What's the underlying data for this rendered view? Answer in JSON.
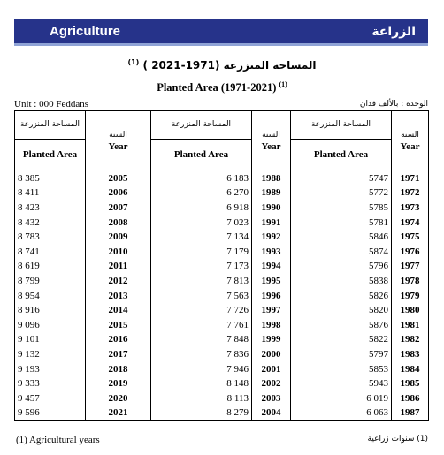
{
  "banner": {
    "title_en": "Agriculture",
    "title_ar": "الزراعة"
  },
  "titles": {
    "ar": "المساحة المنزرعة (1971-2021 )",
    "ar_note": "(1)",
    "en": "Planted Area (1971-2021)",
    "en_note": "(1)"
  },
  "unit": {
    "en": "Unit : 000 Feddans",
    "ar": "الوحدة : بالألف فدان"
  },
  "headers": {
    "area_ar": "المساحة المنزرعة",
    "area_en_block1": "Planted Area",
    "area_en": "Planted Area",
    "year_ar": "السنة",
    "year_en": "Year"
  },
  "rows": [
    {
      "a1": "8 385",
      "y1": "2005",
      "a2": "6 183",
      "y2": "1988",
      "a3": "5747",
      "y3": "1971"
    },
    {
      "a1": "8 411",
      "y1": "2006",
      "a2": "6 270",
      "y2": "1989",
      "a3": "5772",
      "y3": "1972"
    },
    {
      "a1": "8 423",
      "y1": "2007",
      "a2": "6 918",
      "y2": "1990",
      "a3": "5785",
      "y3": "1973"
    },
    {
      "a1": "8 432",
      "y1": "2008",
      "a2": "7 023",
      "y2": "1991",
      "a3": "5781",
      "y3": "1974"
    },
    {
      "a1": "8 783",
      "y1": "2009",
      "a2": "7 134",
      "y2": "1992",
      "a3": "5846",
      "y3": "1975"
    },
    {
      "a1": "8 741",
      "y1": "2010",
      "a2": "7 179",
      "y2": "1993",
      "a3": "5874",
      "y3": "1976"
    },
    {
      "a1": "8 619",
      "y1": "2011",
      "a2": "7 173",
      "y2": "1994",
      "a3": "5796",
      "y3": "1977"
    },
    {
      "a1": "8 799",
      "y1": "2012",
      "a2": "7 813",
      "y2": "1995",
      "a3": "5838",
      "y3": "1978"
    },
    {
      "a1": "8 954",
      "y1": "2013",
      "a2": "7 563",
      "y2": "1996",
      "a3": "5826",
      "y3": "1979"
    },
    {
      "a1": "8 916",
      "y1": "2014",
      "a2": "7 726",
      "y2": "1997",
      "a3": "5820",
      "y3": "1980"
    },
    {
      "a1": "9 096",
      "y1": "2015",
      "a2": "7 761",
      "y2": "1998",
      "a3": "5876",
      "y3": "1981"
    },
    {
      "a1": "9 101",
      "y1": "2016",
      "a2": "7 848",
      "y2": "1999",
      "a3": "5822",
      "y3": "1982"
    },
    {
      "a1": "9 132",
      "y1": "2017",
      "a2": "7 836",
      "y2": "2000",
      "a3": "5797",
      "y3": "1983"
    },
    {
      "a1": "9 193",
      "y1": "2018",
      "a2": "7 946",
      "y2": "2001",
      "a3": "5853",
      "y3": "1984"
    },
    {
      "a1": "9 333",
      "y1": "2019",
      "a2": "8 148",
      "y2": "2002",
      "a3": "5943",
      "y3": "1985"
    },
    {
      "a1": "9 457",
      "y1": "2020",
      "a2": "8 113",
      "y2": "2003",
      "a3": "6 019",
      "y3": "1986"
    },
    {
      "a1": "9 596",
      "y1": "2021",
      "a2": "8 279",
      "y2": "2004",
      "a3": "6 063",
      "y3": "1987"
    }
  ],
  "footnote": {
    "en": "(1) Agricultural years",
    "ar": "(1) سنوات زراعية"
  },
  "colors": {
    "banner_bg": "#26338a",
    "banner_accent": "#8fa3d6"
  }
}
